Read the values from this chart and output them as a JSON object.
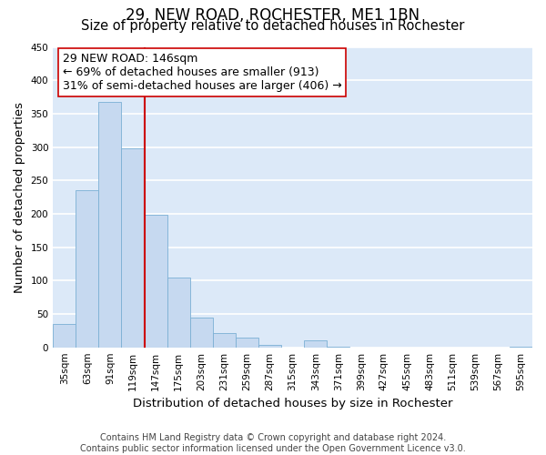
{
  "title": "29, NEW ROAD, ROCHESTER, ME1 1BN",
  "subtitle": "Size of property relative to detached houses in Rochester",
  "xlabel": "Distribution of detached houses by size in Rochester",
  "ylabel": "Number of detached properties",
  "bar_color": "#c6d9f0",
  "bar_edge_color": "#7bafd4",
  "background_color": "#dce9f8",
  "grid_color": "#ffffff",
  "categories": [
    "35sqm",
    "63sqm",
    "91sqm",
    "119sqm",
    "147sqm",
    "175sqm",
    "203sqm",
    "231sqm",
    "259sqm",
    "287sqm",
    "315sqm",
    "343sqm",
    "371sqm",
    "399sqm",
    "427sqm",
    "455sqm",
    "483sqm",
    "511sqm",
    "539sqm",
    "567sqm",
    "595sqm"
  ],
  "values": [
    35,
    236,
    368,
    298,
    199,
    105,
    45,
    22,
    15,
    4,
    0,
    10,
    1,
    0,
    0,
    0,
    0,
    0,
    0,
    0,
    1
  ],
  "vline_color": "#cc0000",
  "annotation_line1": "29 NEW ROAD: 146sqm",
  "annotation_line2": "← 69% of detached houses are smaller (913)",
  "annotation_line3": "31% of semi-detached houses are larger (406) →",
  "annotation_box_color": "#ffffff",
  "annotation_box_edge": "#cc0000",
  "ylim": [
    0,
    450
  ],
  "yticks": [
    0,
    50,
    100,
    150,
    200,
    250,
    300,
    350,
    400,
    450
  ],
  "footer_text": "Contains HM Land Registry data © Crown copyright and database right 2024.\nContains public sector information licensed under the Open Government Licence v3.0.",
  "title_fontsize": 12,
  "subtitle_fontsize": 10.5,
  "label_fontsize": 9.5,
  "tick_fontsize": 7.5,
  "annotation_fontsize": 9,
  "footer_fontsize": 7
}
